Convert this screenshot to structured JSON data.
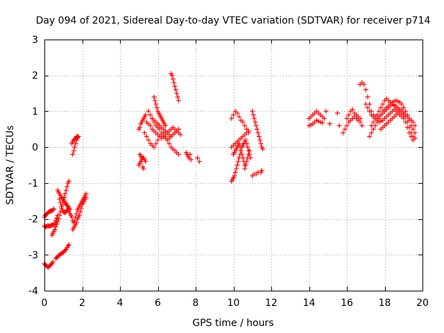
{
  "chart_data": {
    "type": "scatter",
    "title": "Day 094 of 2021, Sidereal Day-to-day VTEC variation (SDTVAR) for receiver p714",
    "xlabel": "GPS time / hours",
    "ylabel": "SDTVAR / TECUs",
    "xlim": [
      0,
      20
    ],
    "ylim": [
      -4,
      3
    ],
    "xticks": [
      0,
      2,
      4,
      6,
      8,
      10,
      12,
      14,
      16,
      18,
      20
    ],
    "yticks": [
      -4,
      -3,
      -2,
      -1,
      0,
      1,
      2,
      3
    ],
    "grid": true,
    "marker": "+",
    "color": "#ff0000",
    "series": [
      {
        "name": "SDTVAR",
        "x": [
          0.0,
          0.05,
          0.1,
          0.15,
          0.2,
          0.25,
          0.3,
          0.35,
          0.4,
          0.45,
          0.5,
          0.0,
          0.05,
          0.1,
          0.15,
          0.2,
          0.25,
          0.3,
          0.35,
          0.4,
          0.45,
          0.5,
          0.55,
          0.6,
          0.65,
          0.7,
          0.0,
          0.05,
          0.1,
          0.15,
          0.2,
          0.25,
          0.3,
          0.35,
          0.4,
          0.45,
          0.4,
          0.45,
          0.5,
          0.55,
          0.6,
          0.65,
          0.7,
          0.75,
          0.8,
          0.85,
          0.9,
          0.95,
          1.0,
          1.05,
          1.1,
          1.15,
          1.2,
          1.25,
          1.3,
          0.6,
          0.65,
          0.7,
          0.75,
          0.8,
          0.85,
          0.9,
          0.95,
          1.0,
          1.05,
          1.1,
          1.15,
          1.2,
          1.25,
          1.3,
          0.7,
          0.75,
          0.8,
          0.85,
          0.9,
          0.95,
          1.0,
          1.05,
          1.1,
          1.15,
          1.2,
          1.25,
          1.3,
          1.35,
          0.8,
          0.85,
          0.9,
          0.95,
          1.0,
          1.05,
          1.1,
          1.15,
          1.2,
          1.25,
          1.3,
          1.35,
          1.4,
          1.45,
          1.5,
          1.55,
          1.6,
          1.65,
          1.7,
          1.75,
          1.8,
          1.85,
          1.9,
          1.95,
          2.0,
          2.05,
          2.1,
          2.15,
          2.2,
          1.5,
          1.55,
          1.6,
          1.65,
          1.7,
          1.75,
          1.8,
          1.85,
          1.9,
          1.95,
          2.0,
          2.05,
          2.1,
          2.15,
          2.2,
          1.5,
          1.55,
          1.6,
          1.65,
          1.7,
          1.75,
          1.8,
          1.45,
          1.5,
          1.55,
          1.6,
          1.65,
          1.7,
          1.75,
          5.0,
          5.05,
          5.1,
          5.15,
          5.2,
          5.25,
          5.3,
          5.35,
          5.0,
          5.05,
          5.1,
          5.15,
          5.2,
          5.25,
          5.3,
          5.35,
          5.05,
          5.1,
          5.15,
          5.2,
          5.25,
          5.3,
          5.4,
          5.5,
          5.6,
          5.7,
          5.8,
          5.9,
          6.0,
          6.1,
          6.2,
          6.3,
          6.4,
          6.5,
          6.6,
          6.7,
          6.8,
          6.9,
          7.0,
          7.1,
          5.4,
          5.5,
          5.6,
          5.7,
          5.8,
          5.9,
          6.0,
          6.1,
          6.2,
          6.3,
          6.4,
          6.5,
          6.6,
          6.7,
          6.8,
          6.9,
          7.0,
          7.1,
          7.2,
          5.5,
          5.6,
          5.7,
          5.8,
          5.9,
          6.0,
          6.1,
          6.2,
          6.3,
          6.4,
          6.5,
          6.6,
          6.7,
          6.8,
          6.9,
          7.0,
          5.7,
          5.8,
          5.9,
          6.0,
          6.1,
          6.2,
          6.3,
          6.4,
          6.5,
          6.6,
          6.7,
          6.8,
          6.9,
          7.0,
          7.1,
          5.8,
          5.85,
          5.9,
          5.95,
          6.0,
          6.05,
          6.1,
          6.15,
          6.2,
          6.25,
          6.3,
          6.35,
          6.4,
          6.7,
          6.75,
          6.8,
          6.85,
          6.9,
          6.95,
          7.0,
          7.05,
          7.1,
          7.5,
          7.55,
          7.6,
          7.65,
          7.7,
          7.75,
          8.1,
          8.2,
          9.9,
          10.0,
          10.1,
          10.2,
          10.3,
          10.4,
          10.5,
          10.6,
          10.7,
          10.8,
          9.9,
          10.0,
          10.1,
          10.2,
          10.3,
          10.4,
          10.5,
          10.6,
          10.7,
          10.8,
          9.9,
          9.95,
          10.0,
          10.05,
          10.1,
          10.15,
          10.2,
          10.25,
          10.3,
          10.35,
          10.4,
          10.45,
          10.5,
          10.55,
          10.6,
          10.65,
          10.7,
          10.75,
          10.8,
          10.85,
          10.9,
          10.0,
          10.05,
          10.1,
          10.15,
          10.2,
          10.25,
          10.3,
          10.35,
          10.4,
          10.45,
          10.5,
          10.55,
          10.6,
          10.6,
          10.65,
          10.7,
          10.75,
          10.8,
          10.85,
          11.0,
          11.05,
          11.1,
          11.15,
          11.2,
          11.25,
          11.3,
          11.35,
          11.4,
          11.45,
          11.5,
          11.55,
          11.0,
          11.1,
          11.2,
          11.3,
          11.45,
          11.5,
          14.0,
          14.1,
          14.2,
          14.3,
          14.4,
          14.5,
          14.6,
          14.7,
          14.8,
          14.0,
          14.1,
          14.2,
          14.3,
          14.4,
          14.5,
          14.6,
          14.7,
          14.9,
          15.1,
          15.5,
          15.6,
          16.0,
          16.1,
          16.2,
          16.3,
          16.4,
          16.5,
          16.6,
          16.7,
          15.8,
          15.9,
          16.0,
          16.1,
          16.2,
          16.3,
          16.4,
          16.5,
          16.6,
          16.7,
          16.8,
          16.7,
          16.8,
          16.9,
          17.0,
          17.1,
          17.2,
          17.3,
          17.4,
          17.5,
          17.6,
          17.7,
          17.8,
          17.9,
          18.0,
          18.1,
          18.2,
          18.3,
          18.4,
          18.5,
          18.6,
          18.7,
          18.8,
          18.9,
          19.0,
          19.1,
          19.2,
          19.3,
          19.4,
          19.5,
          19.6,
          17.2,
          17.3,
          17.4,
          17.5,
          17.6,
          17.7,
          17.8,
          17.9,
          18.0,
          18.1,
          18.2,
          18.3,
          18.4,
          18.5,
          18.6,
          18.7,
          18.8,
          18.9,
          19.0,
          19.1,
          19.2,
          19.3,
          19.4,
          19.5,
          19.6,
          17.0,
          17.1,
          17.2,
          17.3,
          17.4,
          17.5,
          17.6,
          17.7,
          17.8,
          17.9,
          18.0,
          18.1,
          18.2,
          18.3,
          18.4,
          18.5,
          18.6,
          18.7,
          18.8,
          18.9,
          19.0,
          19.1,
          19.2,
          19.3,
          19.4,
          19.5,
          17.3,
          17.4,
          17.5,
          17.6,
          17.7,
          17.8,
          17.9,
          18.0,
          18.1,
          18.2,
          18.3,
          18.4,
          18.5,
          18.6,
          18.7,
          18.8,
          18.9,
          19.0,
          17.8,
          17.9,
          18.0,
          18.1,
          18.2,
          18.3,
          18.4,
          18.5,
          18.6,
          18.7,
          18.8,
          18.9,
          19.0,
          19.1,
          19.2,
          19.3,
          19.4,
          19.5,
          19.6
        ],
        "y": [
          -1.95,
          -1.9,
          -1.87,
          -1.85,
          -1.82,
          -1.8,
          -1.78,
          -1.77,
          -1.78,
          -1.75,
          -1.72,
          -2.2,
          -2.22,
          -2.21,
          -2.2,
          -2.19,
          -2.2,
          -2.2,
          -2.18,
          -2.17,
          -2.17,
          -2.16,
          -2.12,
          -2.05,
          -1.98,
          -1.9,
          -3.25,
          -3.28,
          -3.3,
          -3.33,
          -3.35,
          -3.32,
          -3.3,
          -3.27,
          -3.24,
          -3.2,
          -2.45,
          -2.4,
          -2.35,
          -2.3,
          -2.22,
          -2.15,
          -2.08,
          -2.0,
          -1.9,
          -1.8,
          -1.7,
          -1.6,
          -1.5,
          -1.4,
          -1.3,
          -1.2,
          -1.1,
          -1.0,
          -0.95,
          -3.1,
          -3.08,
          -3.05,
          -3.03,
          -3.0,
          -2.98,
          -2.97,
          -2.95,
          -2.93,
          -2.9,
          -2.87,
          -2.85,
          -2.8,
          -2.75,
          -2.72,
          -1.2,
          -1.25,
          -1.3,
          -1.35,
          -1.4,
          -1.42,
          -1.45,
          -1.5,
          -1.55,
          -1.58,
          -1.62,
          -1.65,
          -1.7,
          -1.73,
          -1.45,
          -1.55,
          -1.65,
          -1.75,
          -1.8,
          -1.82,
          -1.82,
          -1.8,
          -1.75,
          -1.7,
          -1.78,
          -1.85,
          -1.9,
          -1.95,
          -2.05,
          -2.1,
          -2.05,
          -1.95,
          -1.85,
          -1.75,
          -1.7,
          -1.65,
          -1.6,
          -1.55,
          -1.5,
          -1.45,
          -1.4,
          -1.35,
          -1.3,
          -2.3,
          -2.25,
          -2.2,
          -2.15,
          -2.1,
          -2.0,
          -1.95,
          -1.9,
          -1.8,
          -1.7,
          -1.6,
          -1.55,
          -1.5,
          -1.45,
          -1.4,
          -0.2,
          -0.1,
          0.0,
          0.1,
          0.2,
          0.25,
          0.3,
          0.1,
          0.15,
          0.2,
          0.22,
          0.25,
          0.3,
          0.28,
          0.5,
          0.55,
          0.65,
          0.7,
          0.75,
          0.8,
          0.85,
          0.9,
          -0.5,
          -0.45,
          -0.4,
          -0.35,
          -0.3,
          -0.3,
          -0.35,
          -0.4,
          -0.2,
          -0.25,
          -0.3,
          -0.55,
          -0.6,
          0.4,
          0.3,
          0.2,
          0.1,
          0.05,
          0.0,
          0.1,
          0.2,
          0.3,
          0.35,
          0.4,
          0.3,
          0.2,
          0.1,
          0.0,
          -0.05,
          -0.1,
          -0.15,
          -0.2,
          0.7,
          0.65,
          0.6,
          0.5,
          0.45,
          0.4,
          0.35,
          0.3,
          0.25,
          0.3,
          0.35,
          0.4,
          0.45,
          0.5,
          0.55,
          0.5,
          0.45,
          0.4,
          0.35,
          1.0,
          0.9,
          0.8,
          0.7,
          0.6,
          0.55,
          0.5,
          0.4,
          0.3,
          0.25,
          0.2,
          0.25,
          0.3,
          0.35,
          0.4,
          0.45,
          0.8,
          0.75,
          0.7,
          0.65,
          0.6,
          0.55,
          0.5,
          0.45,
          0.4,
          0.35,
          0.3,
          0.35,
          0.4,
          0.45,
          0.5,
          1.4,
          1.3,
          1.2,
          1.1,
          1.0,
          0.95,
          0.9,
          0.85,
          0.8,
          0.75,
          0.7,
          0.65,
          0.6,
          2.05,
          2.0,
          1.9,
          1.8,
          1.7,
          1.6,
          1.5,
          1.4,
          1.3,
          -0.15,
          -0.2,
          -0.25,
          -0.3,
          -0.2,
          -0.35,
          -0.3,
          -0.4,
          0.8,
          0.9,
          1.0,
          0.95,
          0.85,
          0.75,
          0.7,
          0.6,
          0.5,
          0.4,
          0.0,
          0.05,
          0.1,
          0.15,
          0.2,
          0.25,
          0.3,
          0.35,
          0.4,
          0.45,
          -0.95,
          -0.9,
          -0.85,
          -0.8,
          -0.7,
          -0.6,
          -0.5,
          -0.4,
          -0.3,
          -0.2,
          -0.1,
          0.0,
          0.05,
          0.1,
          0.15,
          0.2,
          0.1,
          0.0,
          -0.1,
          -0.2,
          -0.3,
          -0.2,
          -0.15,
          -0.1,
          -0.05,
          0.0,
          0.05,
          0.1,
          0.0,
          -0.1,
          -0.2,
          -0.3,
          -0.4,
          -0.5,
          -0.6,
          -0.5,
          -0.4,
          -0.3,
          -0.2,
          -0.1,
          1.0,
          0.9,
          0.8,
          0.7,
          0.6,
          0.5,
          0.4,
          0.3,
          0.2,
          0.1,
          0.0,
          -0.05,
          -0.8,
          -0.75,
          -0.75,
          -0.7,
          -0.7,
          -0.65,
          0.8,
          0.85,
          0.9,
          0.95,
          1.0,
          0.95,
          0.9,
          0.85,
          0.8,
          0.6,
          0.62,
          0.65,
          0.7,
          0.75,
          0.72,
          0.7,
          0.68,
          1.0,
          0.65,
          0.95,
          0.6,
          0.8,
          0.9,
          1.0,
          1.05,
          0.95,
          0.9,
          0.85,
          0.8,
          0.4,
          0.5,
          0.6,
          0.7,
          0.75,
          0.8,
          0.85,
          0.8,
          0.75,
          0.7,
          0.6,
          1.75,
          1.8,
          1.75,
          1.6,
          1.4,
          1.2,
          1.0,
          0.9,
          0.85,
          0.8,
          0.85,
          0.9,
          0.95,
          1.0,
          1.05,
          1.1,
          1.15,
          1.2,
          1.18,
          1.15,
          1.1,
          1.05,
          1.0,
          0.95,
          0.9,
          0.85,
          0.8,
          0.75,
          0.7,
          0.6,
          0.3,
          0.4,
          0.5,
          0.6,
          0.7,
          0.8,
          0.9,
          1.0,
          1.05,
          1.1,
          1.15,
          1.2,
          1.25,
          1.28,
          1.3,
          1.28,
          1.25,
          1.2,
          1.1,
          1.0,
          0.9,
          0.75,
          0.6,
          0.5,
          0.4,
          1.2,
          1.1,
          1.0,
          0.9,
          0.85,
          0.8,
          0.75,
          0.7,
          0.72,
          0.75,
          0.8,
          0.85,
          0.9,
          0.95,
          1.0,
          1.05,
          1.0,
          0.95,
          0.9,
          0.85,
          0.8,
          0.7,
          0.55,
          0.4,
          0.3,
          0.2,
          0.6,
          0.7,
          0.8,
          0.9,
          1.0,
          1.1,
          1.2,
          1.3,
          1.35,
          1.3,
          1.25,
          1.2,
          1.15,
          1.1,
          1.05,
          1.0,
          0.95,
          0.9,
          0.5,
          0.55,
          0.6,
          0.65,
          0.7,
          0.75,
          0.8,
          0.85,
          0.9,
          0.95,
          1.0,
          1.05,
          0.95,
          0.85,
          0.7,
          0.55,
          0.4,
          0.3,
          0.25
        ]
      }
    ]
  }
}
